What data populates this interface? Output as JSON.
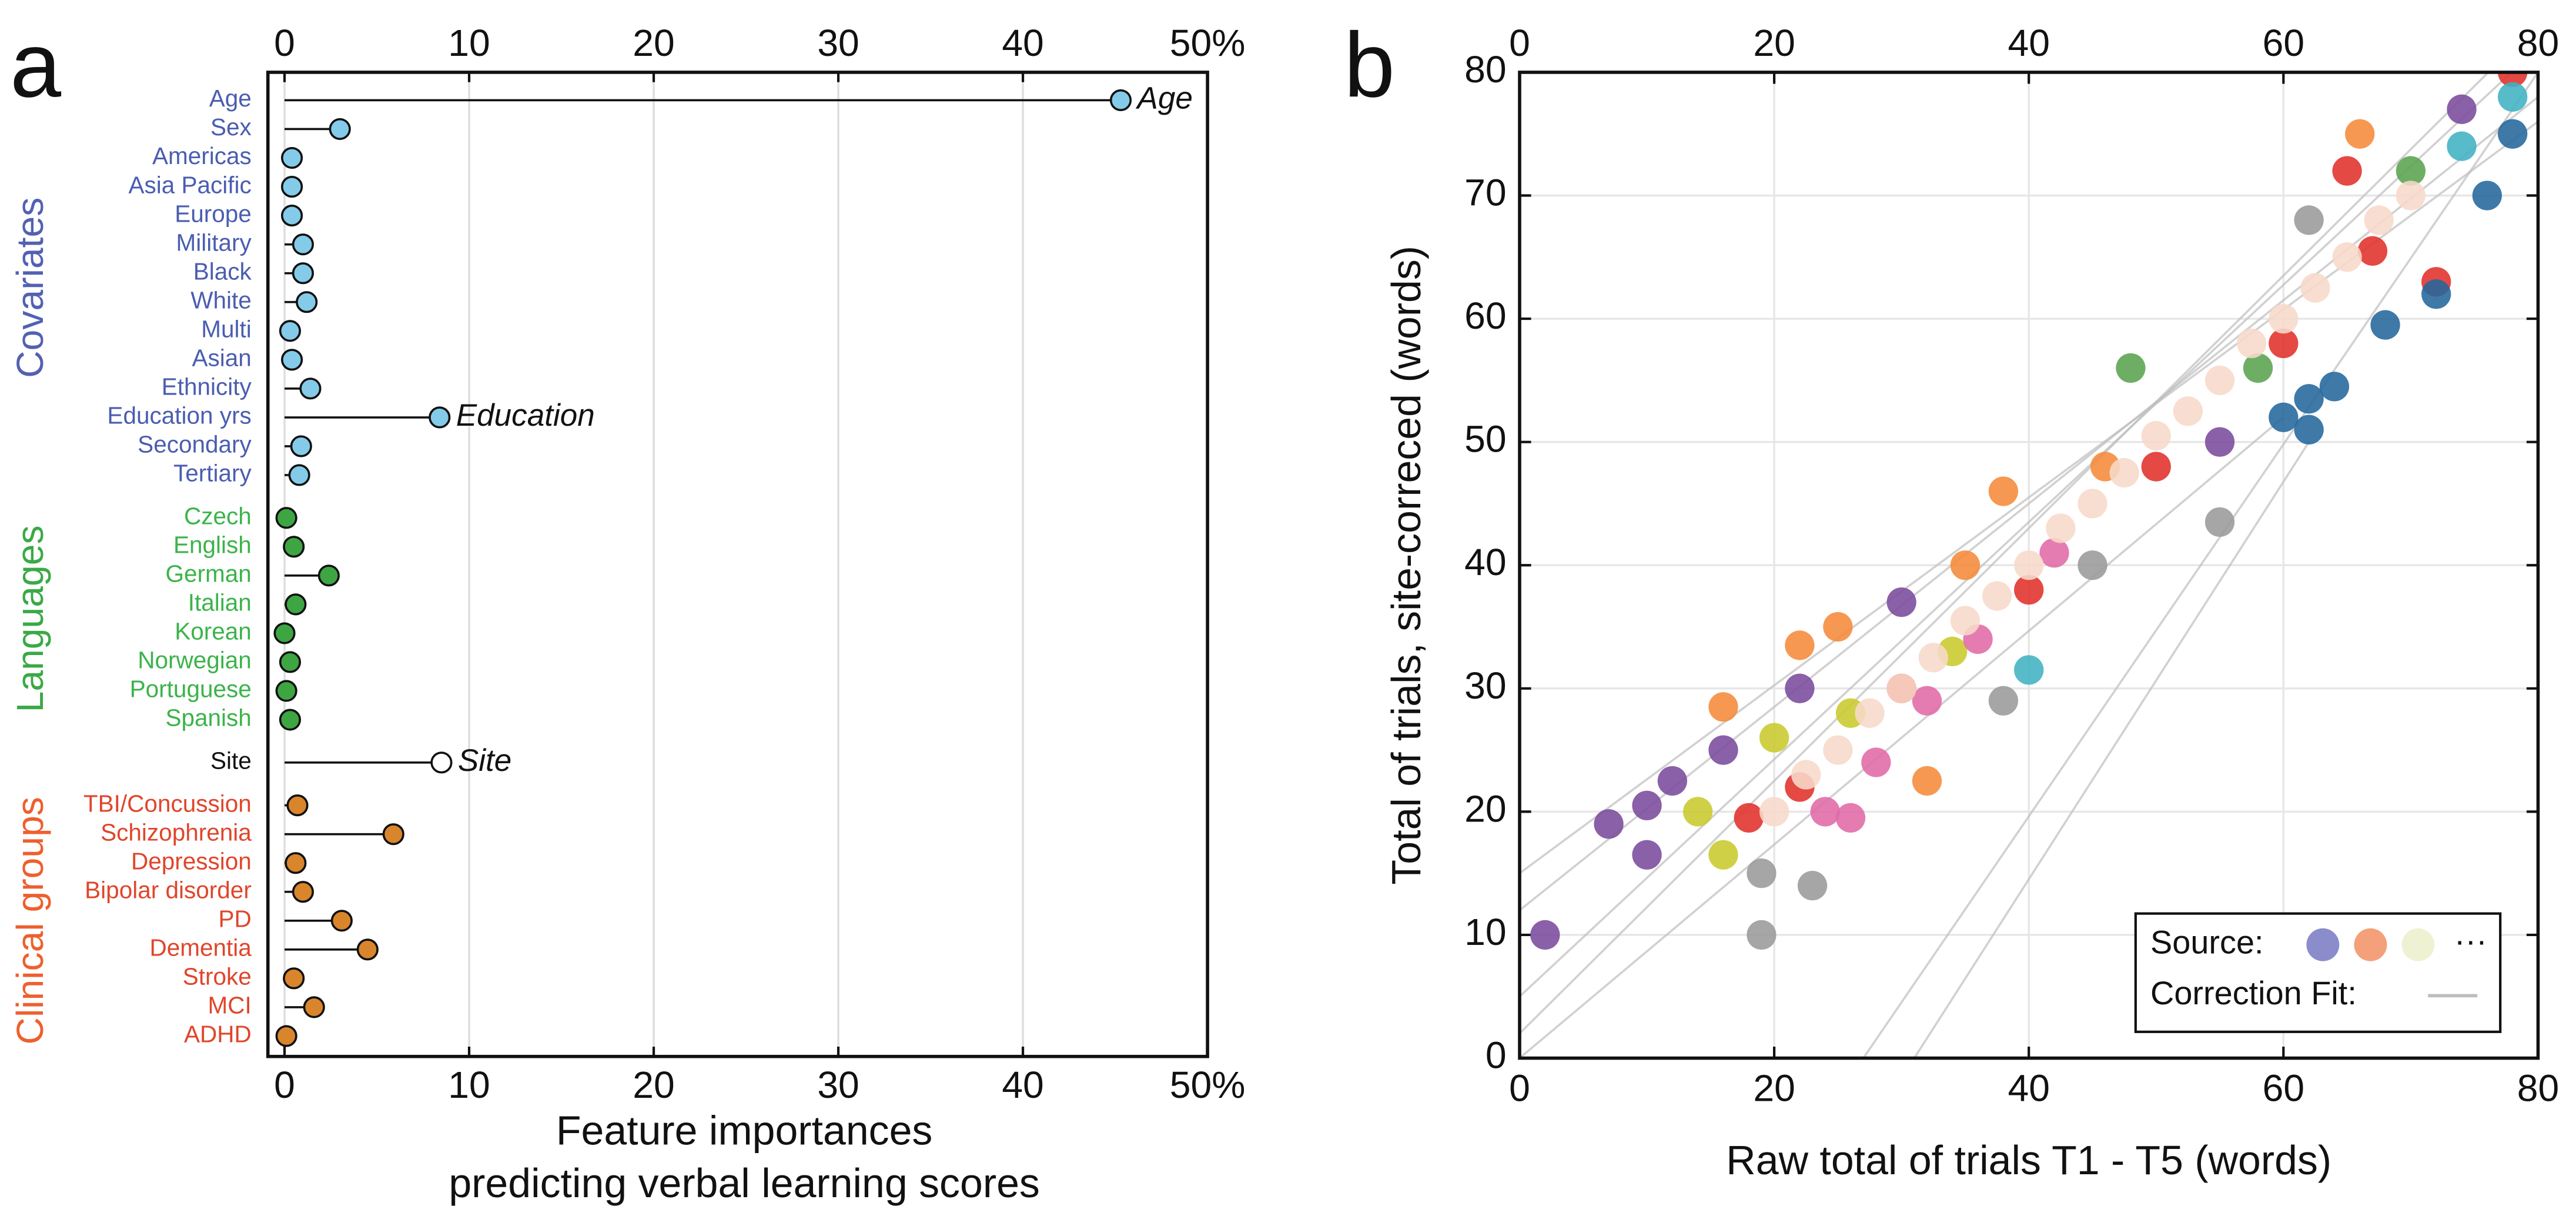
{
  "chart_data": [
    {
      "type": "lollipop",
      "panel": "a",
      "xlabel": [
        "Feature importances",
        "predicting verbal learning scores"
      ],
      "xlim": [
        -0.9,
        50
      ],
      "xticks": [
        0,
        10,
        20,
        30,
        40,
        {
          "value": 50,
          "label": "50%"
        }
      ],
      "grid": true,
      "groups": [
        {
          "name": "Covariates",
          "title_color": "#5261b3",
          "label_color": "#4a5db0",
          "color": "#84cbe9",
          "items": [
            {
              "name": "Age",
              "value": 45.3,
              "annotation": "Age"
            },
            {
              "name": "Sex",
              "value": 3.0
            },
            {
              "name": "Americas",
              "value": 0.4
            },
            {
              "name": "Asia Pacific",
              "value": 0.4
            },
            {
              "name": "Europe",
              "value": 0.4
            },
            {
              "name": "Military",
              "value": 1.0
            },
            {
              "name": "Black",
              "value": 1.0
            },
            {
              "name": "White",
              "value": 1.2
            },
            {
              "name": "Multi",
              "value": 0.3
            },
            {
              "name": "Asian",
              "value": 0.4
            },
            {
              "name": "Ethnicity",
              "value": 1.4
            },
            {
              "name": "Education yrs",
              "value": 8.4,
              "annotation": "Education"
            },
            {
              "name": "Secondary",
              "value": 0.9
            },
            {
              "name": "Tertiary",
              "value": 0.8
            }
          ]
        },
        {
          "name": "Languages",
          "title_color": "#3aa946",
          "label_color": "#3bb34a",
          "color": "#3da643",
          "items": [
            {
              "name": "Czech",
              "value": 0.1
            },
            {
              "name": "English",
              "value": 0.5
            },
            {
              "name": "German",
              "value": 2.4
            },
            {
              "name": "Italian",
              "value": 0.6
            },
            {
              "name": "Korean",
              "value": 0.0
            },
            {
              "name": "Norwegian",
              "value": 0.3
            },
            {
              "name": "Portuguese",
              "value": 0.1
            },
            {
              "name": "Spanish",
              "value": 0.3
            }
          ]
        },
        {
          "label_color": "#111111",
          "color": "#ffffff",
          "items": [
            {
              "name": "Site",
              "value": 8.5,
              "annotation": "Site"
            }
          ]
        },
        {
          "name": "Clinical groups",
          "title_color": "#ee5f2e",
          "label_color": "#e0452a",
          "color": "#d9852c",
          "items": [
            {
              "name": "TBI/Concussion",
              "value": 0.7
            },
            {
              "name": "Schizophrenia",
              "value": 5.9
            },
            {
              "name": "Depression",
              "value": 0.6
            },
            {
              "name": "Bipolar disorder",
              "value": 1.0
            },
            {
              "name": "PD",
              "value": 3.1
            },
            {
              "name": "Dementia",
              "value": 4.5
            },
            {
              "name": "Stroke",
              "value": 0.5
            },
            {
              "name": "MCI",
              "value": 1.6
            },
            {
              "name": "ADHD",
              "value": 0.1
            }
          ]
        }
      ]
    },
    {
      "type": "scatter",
      "panel": "b",
      "xlabel": "Raw total of trials T1 - T5 (words)",
      "ylabel": "Total of trials, site-correced (words)",
      "xlim": [
        0,
        80
      ],
      "ylim": [
        0,
        80
      ],
      "xticks": [
        0,
        20,
        40,
        60,
        80
      ],
      "yticks": [
        0,
        10,
        20,
        30,
        40,
        50,
        60,
        70,
        80
      ],
      "grid": true,
      "fit_lines": {
        "color": "#bdbdbd",
        "lines": [
          {
            "x": [
              0,
              80
            ],
            "y": [
              5,
              82
            ]
          },
          {
            "x": [
              0,
              80
            ],
            "y": [
              12,
              78
            ]
          },
          {
            "x": [
              0,
              80
            ],
            "y": [
              15,
              76
            ]
          },
          {
            "x": [
              0,
              80
            ],
            "y": [
              2,
              84
            ]
          },
          {
            "x": [
              27,
              80
            ],
            "y": [
              0,
              80
            ]
          },
          {
            "x": [
              31,
              62
            ],
            "y": [
              0,
              50
            ]
          },
          {
            "x": [
              0,
              60
            ],
            "y": [
              0,
              52
            ]
          }
        ]
      },
      "series": [
        {
          "color": "#7a4a9c",
          "x": [
            2,
            7,
            10,
            10,
            12,
            16,
            22,
            30,
            74,
            55
          ],
          "y": [
            10,
            19,
            16.5,
            20.5,
            22.5,
            25,
            30,
            37,
            77,
            50
          ]
        },
        {
          "color": "#9a9a9a",
          "x": [
            19,
            23,
            19,
            38,
            55,
            45,
            62
          ],
          "y": [
            10,
            14,
            15,
            29,
            43.5,
            40,
            68
          ]
        },
        {
          "color": "#f58a3a",
          "x": [
            16,
            22,
            32,
            35,
            38,
            66,
            25,
            46
          ],
          "y": [
            28.5,
            33.5,
            22.5,
            40,
            46,
            75,
            35,
            48
          ]
        },
        {
          "color": "#e0302a",
          "x": [
            18,
            22,
            30,
            40,
            50,
            60,
            67,
            72,
            65,
            78
          ],
          "y": [
            19.5,
            22,
            30,
            38,
            48,
            58,
            65.5,
            63,
            72,
            80
          ]
        },
        {
          "color": "#23679c",
          "x": [
            62,
            62,
            64,
            68,
            72,
            76,
            78,
            60
          ],
          "y": [
            51,
            53.5,
            54.5,
            59.5,
            62,
            70,
            75,
            52
          ]
        },
        {
          "color": "#c9c92c",
          "x": [
            16,
            14,
            20,
            26,
            34
          ],
          "y": [
            16.5,
            20,
            26,
            28,
            33
          ]
        },
        {
          "color": "#e06aa6",
          "x": [
            24,
            28,
            32,
            36,
            42,
            26
          ],
          "y": [
            20,
            24,
            29,
            34,
            41,
            19.5
          ]
        },
        {
          "color": "#40b2c2",
          "x": [
            40,
            78,
            74
          ],
          "y": [
            31.5,
            78,
            74
          ]
        },
        {
          "color": "#5aa34f",
          "x": [
            48,
            70,
            58
          ],
          "y": [
            56,
            72,
            56
          ]
        },
        {
          "color": "#f7d9c9",
          "x": [
            20,
            22.5,
            25,
            27.5,
            30,
            32.5,
            35,
            37.5,
            40,
            42.5,
            45,
            47.5,
            50,
            52.5,
            55,
            57.5,
            60,
            62.5,
            65,
            67.5,
            70
          ],
          "y": [
            20,
            23,
            25,
            28,
            30,
            32.5,
            35.5,
            37.5,
            40,
            43,
            45,
            47.5,
            50.5,
            52.5,
            55,
            58,
            60,
            62.5,
            65,
            68,
            70
          ]
        }
      ],
      "legend": {
        "source_label": "Source:",
        "source_colors": [
          "#8a8ccc",
          "#f4a07a",
          "#eef2d2"
        ],
        "more": "···",
        "fit_label": "Correction Fit:",
        "fit_color": "#bdbdbd"
      }
    }
  ]
}
